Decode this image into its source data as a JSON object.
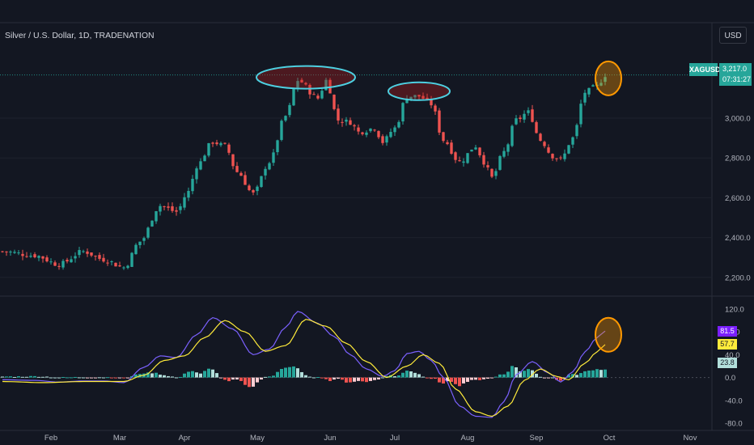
{
  "header": {
    "title": "Silver / U.S. Dollar, 1D, TRADENATION",
    "currency_button": "USD"
  },
  "price_tag": {
    "symbol": "XAGUSD",
    "price": "3,217.0",
    "countdown": "07:31:27"
  },
  "indicator_tags": {
    "purple": "81.5",
    "yellow": "57.7",
    "teal": "23.8"
  },
  "colors": {
    "background": "#131722",
    "up": "#26a69a",
    "down": "#ef5350",
    "macd_line": "#7b61ff",
    "signal_line": "#ffeb3b",
    "highlight_ellipse": "#4dd0e1",
    "highlight_circle": "#ff9800"
  },
  "chart_data": [
    {
      "type": "candlestick",
      "title": "Silver / U.S. Dollar, 1D, TRADENATION",
      "ylim": [
        2130,
        3370
      ],
      "yticks": [
        "3,000.0",
        "2,800.0",
        "2,600.0",
        "2,400.0",
        "2,200.0"
      ],
      "ytick_values": [
        3000,
        2800,
        2600,
        2400,
        2200
      ],
      "xticks": [
        "Feb",
        "Mar",
        "Apr",
        "May",
        "Jun",
        "Jul",
        "Aug",
        "Sep",
        "Oct",
        "Nov"
      ],
      "last_price": 3217.0,
      "anchors": [
        [
          0,
          2330
        ],
        [
          8,
          2310
        ],
        [
          14,
          2265
        ],
        [
          20,
          2330
        ],
        [
          25,
          2290
        ],
        [
          30,
          2250
        ],
        [
          34,
          2380
        ],
        [
          39,
          2560
        ],
        [
          43,
          2530
        ],
        [
          46,
          2630
        ],
        [
          48,
          2760
        ],
        [
          52,
          2880
        ],
        [
          55,
          2860
        ],
        [
          58,
          2730
        ],
        [
          62,
          2620
        ],
        [
          66,
          2780
        ],
        [
          70,
          3010
        ],
        [
          73,
          3190
        ],
        [
          78,
          3100
        ],
        [
          80,
          3190
        ],
        [
          83,
          2990
        ],
        [
          86,
          2980
        ],
        [
          88,
          2930
        ],
        [
          92,
          2950
        ],
        [
          94,
          2880
        ],
        [
          97,
          2950
        ],
        [
          100,
          3110
        ],
        [
          103,
          3110
        ],
        [
          106,
          3070
        ],
        [
          109,
          2890
        ],
        [
          113,
          2780
        ],
        [
          117,
          2860
        ],
        [
          119,
          2780
        ],
        [
          121,
          2700
        ],
        [
          124,
          2830
        ],
        [
          127,
          2990
        ],
        [
          130,
          3030
        ],
        [
          133,
          2890
        ],
        [
          136,
          2810
        ],
        [
          138,
          2790
        ],
        [
          141,
          2900
        ],
        [
          144,
          3130
        ],
        [
          147,
          3160
        ],
        [
          149,
          3217
        ]
      ],
      "annotations": [
        {
          "shape": "ellipse",
          "label": "double-top-left",
          "x_index": 75,
          "price": 3205
        },
        {
          "shape": "ellipse",
          "label": "double-top-right",
          "x_index": 103,
          "price": 3135
        },
        {
          "shape": "circle",
          "label": "latest-high",
          "x_index": 148,
          "price": 3200
        }
      ]
    },
    {
      "type": "macd",
      "ylim": [
        -90,
        130
      ],
      "yticks": [
        "120.0",
        "80.0",
        "40.0",
        "0.0",
        "-40.0",
        "-80.0"
      ],
      "ytick_values": [
        120,
        80,
        40,
        0,
        -40,
        -80
      ],
      "macd_anchors": [
        [
          0,
          -4
        ],
        [
          8,
          -5
        ],
        [
          14,
          -8
        ],
        [
          20,
          -6
        ],
        [
          25,
          -6
        ],
        [
          30,
          -9
        ],
        [
          35,
          18
        ],
        [
          39,
          38
        ],
        [
          43,
          35
        ],
        [
          48,
          75
        ],
        [
          52,
          105
        ],
        [
          57,
          85
        ],
        [
          62,
          40
        ],
        [
          66,
          50
        ],
        [
          70,
          88
        ],
        [
          73,
          116
        ],
        [
          78,
          95
        ],
        [
          82,
          72
        ],
        [
          86,
          40
        ],
        [
          90,
          15
        ],
        [
          94,
          2
        ],
        [
          97,
          12
        ],
        [
          100,
          42
        ],
        [
          103,
          46
        ],
        [
          106,
          30
        ],
        [
          109,
          0
        ],
        [
          113,
          -50
        ],
        [
          117,
          -68
        ],
        [
          121,
          -70
        ],
        [
          124,
          -42
        ],
        [
          127,
          5
        ],
        [
          131,
          28
        ],
        [
          135,
          8
        ],
        [
          138,
          -8
        ],
        [
          141,
          10
        ],
        [
          144,
          45
        ],
        [
          147,
          70
        ],
        [
          149,
          81.5
        ]
      ],
      "signal_anchors": [
        [
          0,
          -7
        ],
        [
          10,
          -9
        ],
        [
          20,
          -7
        ],
        [
          30,
          -7
        ],
        [
          35,
          4
        ],
        [
          40,
          30
        ],
        [
          45,
          38
        ],
        [
          50,
          70
        ],
        [
          55,
          100
        ],
        [
          60,
          80
        ],
        [
          65,
          46
        ],
        [
          70,
          56
        ],
        [
          75,
          102
        ],
        [
          80,
          90
        ],
        [
          85,
          60
        ],
        [
          90,
          28
        ],
        [
          95,
          0
        ],
        [
          100,
          20
        ],
        [
          104,
          40
        ],
        [
          108,
          25
        ],
        [
          112,
          -20
        ],
        [
          117,
          -60
        ],
        [
          121,
          -68
        ],
        [
          125,
          -50
        ],
        [
          129,
          -5
        ],
        [
          133,
          15
        ],
        [
          137,
          2
        ],
        [
          140,
          -4
        ],
        [
          144,
          25
        ],
        [
          147,
          45
        ],
        [
          149,
          57.7
        ]
      ],
      "histogram_last": 23.8
    }
  ]
}
